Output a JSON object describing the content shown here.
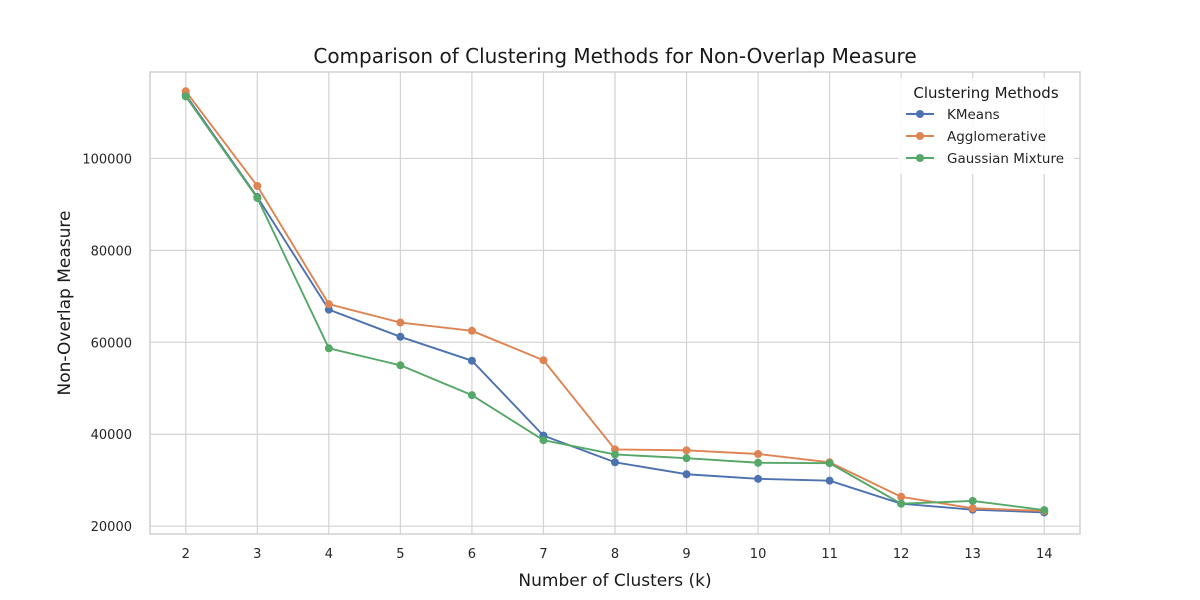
{
  "chart_data": {
    "type": "line",
    "title": "Comparison of Clustering Methods for Non-Overlap Measure",
    "xlabel": "Number of Clusters (k)",
    "ylabel": "Non-Overlap Measure",
    "x": [
      2,
      3,
      4,
      5,
      6,
      7,
      8,
      9,
      10,
      11,
      12,
      13,
      14
    ],
    "xlim": [
      1.5,
      14.5
    ],
    "ylim": [
      18300,
      118800
    ],
    "yticks": [
      20000,
      40000,
      60000,
      80000,
      100000
    ],
    "xticks": [
      2,
      3,
      4,
      5,
      6,
      7,
      8,
      9,
      10,
      11,
      12,
      13,
      14
    ],
    "grid": true,
    "legend_title": "Clustering Methods",
    "legend_position": "top-right",
    "series": [
      {
        "name": "KMeans",
        "color": "#4c72b0",
        "values": [
          113800,
          91600,
          67100,
          61200,
          56000,
          39700,
          33900,
          31300,
          30300,
          29900,
          24900,
          23600,
          23000
        ]
      },
      {
        "name": "Agglomerative",
        "color": "#dd8452",
        "values": [
          114600,
          94000,
          68300,
          64300,
          62500,
          56100,
          36700,
          36500,
          35700,
          33900,
          26400,
          23900,
          23300
        ]
      },
      {
        "name": "Gaussian Mixture",
        "color": "#55a868",
        "values": [
          113500,
          91400,
          58700,
          55000,
          48500,
          38700,
          35600,
          34800,
          33800,
          33700,
          24900,
          25500,
          23500
        ]
      }
    ]
  }
}
